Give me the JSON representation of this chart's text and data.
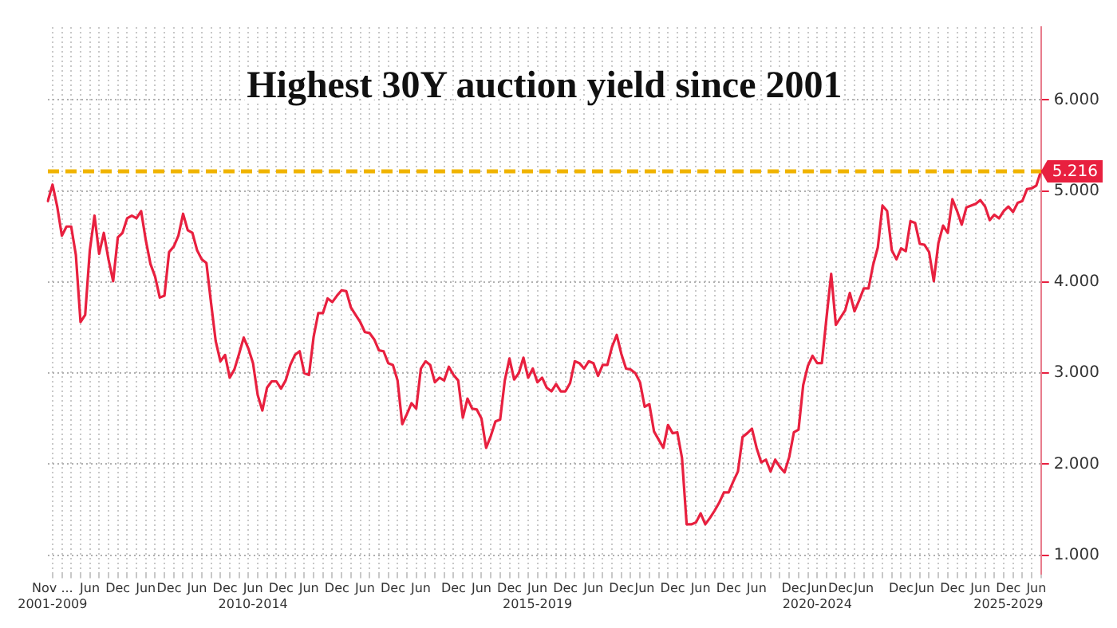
{
  "chart_data": {
    "type": "line",
    "title": "Highest 30Y auction yield since 2001",
    "categories": [
      null,
      "Nov ...\n2001-2009",
      null,
      null,
      null,
      null,
      null,
      null,
      null,
      "Jun",
      null,
      null,
      null,
      null,
      null,
      "Dec",
      null,
      null,
      null,
      null,
      null,
      "Jun",
      null,
      null,
      null,
      null,
      "Dec",
      null,
      null,
      null,
      null,
      null,
      "Jun",
      null,
      null,
      null,
      null,
      null,
      "Dec",
      null,
      null,
      null,
      null,
      null,
      "Jun\n2010-2014",
      null,
      null,
      null,
      null,
      null,
      "Dec",
      null,
      null,
      null,
      null,
      null,
      "Jun",
      null,
      null,
      null,
      null,
      null,
      "Dec",
      null,
      null,
      null,
      null,
      null,
      "Jun",
      null,
      null,
      null,
      null,
      null,
      "Dec",
      null,
      null,
      null,
      null,
      null,
      "Jun",
      null,
      null,
      null,
      null,
      null,
      null,
      "Dec",
      null,
      null,
      null,
      null,
      null,
      "Jun",
      null,
      null,
      null,
      null,
      null,
      "Dec",
      null,
      null,
      null,
      null,
      null,
      "Jun\n2015-2019",
      null,
      null,
      null,
      null,
      null,
      "Dec",
      null,
      null,
      null,
      null,
      null,
      "Jun",
      null,
      null,
      null,
      null,
      null,
      "Dec",
      null,
      null,
      null,
      null,
      "Jun",
      null,
      null,
      null,
      null,
      null,
      "Dec",
      null,
      null,
      null,
      null,
      null,
      "Jun",
      null,
      null,
      null,
      null,
      null,
      "Dec",
      null,
      null,
      null,
      null,
      null,
      "Jun",
      null,
      null,
      null,
      null,
      null,
      null,
      null,
      "Dec",
      null,
      null,
      null,
      null,
      "Jun\n2020-2024",
      null,
      null,
      null,
      null,
      "Dec",
      null,
      null,
      null,
      null,
      "Jun",
      null,
      null,
      null,
      null,
      null,
      null,
      null,
      "Dec",
      null,
      null,
      null,
      null,
      "Jun",
      null,
      null,
      null,
      null,
      null,
      "Dec",
      null,
      null,
      null,
      null,
      null,
      "Jun",
      null,
      null,
      null,
      null,
      null,
      "Dec\n2025-2029",
      null,
      null,
      null,
      null,
      null,
      "Jun",
      null
    ],
    "series": [
      {
        "color": "#e8203f",
        "values": [
          4.89,
          5.07,
          4.83,
          4.51,
          4.61,
          4.61,
          4.3,
          3.56,
          3.64,
          4.35,
          4.73,
          4.31,
          4.54,
          4.25,
          4.01,
          4.49,
          4.54,
          4.7,
          4.73,
          4.7,
          4.78,
          4.46,
          4.2,
          4.06,
          3.83,
          3.85,
          4.33,
          4.39,
          4.51,
          4.75,
          4.57,
          4.54,
          4.35,
          4.25,
          4.21,
          3.77,
          3.35,
          3.13,
          3.2,
          2.95,
          3.04,
          3.21,
          3.39,
          3.27,
          3.11,
          2.76,
          2.59,
          2.84,
          2.91,
          2.91,
          2.83,
          2.92,
          3.09,
          3.2,
          3.24,
          3,
          2.98,
          3.4,
          3.66,
          3.66,
          3.82,
          3.78,
          3.85,
          3.91,
          3.9,
          3.72,
          3.64,
          3.56,
          3.45,
          3.44,
          3.37,
          3.25,
          3.24,
          3.11,
          3.09,
          2.92,
          2.44,
          2.55,
          2.67,
          2.61,
          3.05,
          3.13,
          3.09,
          2.9,
          2.95,
          2.92,
          3.07,
          2.98,
          2.92,
          2.51,
          2.72,
          2.61,
          2.6,
          2.5,
          2.18,
          2.31,
          2.47,
          2.49,
          2.92,
          3.16,
          2.93,
          3,
          3.17,
          2.95,
          3.05,
          2.9,
          2.95,
          2.84,
          2.8,
          2.88,
          2.8,
          2.8,
          2.89,
          3.13,
          3.11,
          3.05,
          3.13,
          3.11,
          2.97,
          3.09,
          3.09,
          3.29,
          3.42,
          3.21,
          3.05,
          3.04,
          3,
          2.9,
          2.63,
          2.66,
          2.36,
          2.27,
          2.18,
          2.43,
          2.34,
          2.35,
          2.07,
          1.34,
          1.34,
          1.36,
          1.46,
          1.34,
          1.41,
          1.49,
          1.58,
          1.69,
          1.69,
          1.81,
          1.92,
          2.3,
          2.34,
          2.39,
          2.18,
          2.02,
          2.05,
          1.92,
          2.05,
          1.97,
          1.91,
          2.08,
          2.35,
          2.38,
          2.87,
          3.08,
          3.19,
          3.11,
          3.11,
          3.61,
          4.09,
          3.53,
          3.61,
          3.69,
          3.88,
          3.68,
          3.8,
          3.93,
          3.93,
          4.19,
          4.38,
          4.84,
          4.78,
          4.35,
          4.25,
          4.37,
          4.34,
          4.67,
          4.65,
          4.42,
          4.41,
          4.33,
          4.01,
          4.43,
          4.62,
          4.54,
          4.91,
          4.78,
          4.63,
          4.82,
          4.84,
          4.86,
          4.9,
          4.83,
          4.68,
          4.74,
          4.7,
          4.78,
          4.83,
          4.77,
          4.87,
          4.89,
          5.02,
          5.03,
          5.06,
          5.22
        ]
      }
    ],
    "ylim": [
      0.8,
      6.8
    ],
    "yticks": [
      {
        "value": 1,
        "label": "1.000"
      },
      {
        "value": 2,
        "label": "2.000"
      },
      {
        "value": 3,
        "label": "3.000"
      },
      {
        "value": 4,
        "label": "4.000"
      },
      {
        "value": 5,
        "label": "5.000"
      },
      {
        "value": 6,
        "label": "6.000"
      }
    ],
    "ref_lines": [
      {
        "axis": "y",
        "value": 5.216,
        "label": "5.216",
        "color": "#f0b400",
        "line_style": "dashed"
      }
    ],
    "grid": true,
    "legend": false,
    "marker": "none",
    "line_style": "solid"
  }
}
